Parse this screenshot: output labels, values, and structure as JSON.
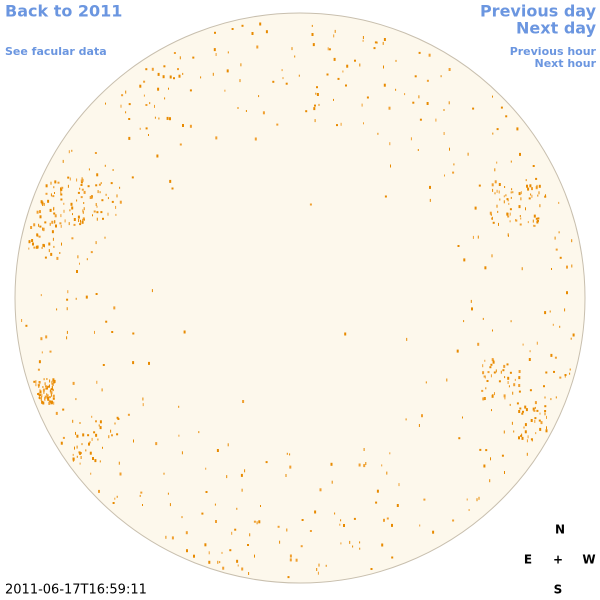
{
  "header": {
    "back_link": "Back to 2011",
    "facular_link": "See facular data"
  },
  "nav": {
    "previous_day": "Previous day",
    "next_day": "Next day",
    "previous_hour": "Previous hour",
    "next_hour": "Next hour"
  },
  "timestamp": "2011-06-17T16:59:11",
  "compass": {
    "north": "N",
    "east": "E",
    "center": "+",
    "west": "W",
    "south": "S"
  }
}
